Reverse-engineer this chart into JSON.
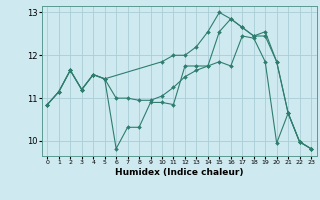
{
  "xlabel": "Humidex (Indice chaleur)",
  "bg_color": "#ceeaf0",
  "line_color": "#2e7d6e",
  "grid_color": "#aacdd6",
  "xlim": [
    -0.5,
    23.5
  ],
  "ylim": [
    9.65,
    13.15
  ],
  "yticks": [
    10,
    11,
    12,
    13
  ],
  "xticks": [
    0,
    1,
    2,
    3,
    4,
    5,
    6,
    7,
    8,
    9,
    10,
    11,
    12,
    13,
    14,
    15,
    16,
    17,
    18,
    19,
    20,
    21,
    22,
    23
  ],
  "line1_x": [
    0,
    1,
    2,
    3,
    4,
    5,
    6,
    7,
    8,
    9,
    10,
    11,
    12,
    13,
    14,
    15,
    16,
    17,
    18,
    19,
    20,
    21,
    22,
    23
  ],
  "line1_y": [
    10.85,
    11.15,
    11.65,
    11.2,
    11.55,
    11.45,
    9.82,
    10.32,
    10.32,
    10.9,
    10.9,
    10.85,
    11.75,
    11.75,
    11.75,
    11.85,
    11.75,
    12.45,
    12.4,
    11.85,
    9.95,
    10.65,
    9.98,
    9.82
  ],
  "line2_x": [
    0,
    1,
    2,
    3,
    4,
    5,
    10,
    11,
    12,
    13,
    14,
    15,
    16,
    17,
    18,
    19,
    20,
    21,
    22,
    23
  ],
  "line2_y": [
    10.85,
    11.15,
    11.65,
    11.2,
    11.55,
    11.45,
    11.85,
    12.0,
    12.0,
    12.2,
    12.55,
    13.0,
    12.85,
    12.65,
    12.45,
    12.55,
    11.85,
    10.65,
    9.98,
    9.82
  ],
  "line3_x": [
    0,
    1,
    2,
    3,
    4,
    5,
    6,
    7,
    8,
    9,
    10,
    11,
    12,
    13,
    14,
    15,
    16,
    17,
    18,
    19,
    20,
    21,
    22,
    23
  ],
  "line3_y": [
    10.85,
    11.15,
    11.65,
    11.2,
    11.55,
    11.45,
    11.0,
    11.0,
    10.95,
    10.95,
    11.05,
    11.25,
    11.5,
    11.65,
    11.75,
    12.55,
    12.85,
    12.65,
    12.45,
    12.45,
    11.85,
    10.65,
    9.98,
    9.82
  ]
}
